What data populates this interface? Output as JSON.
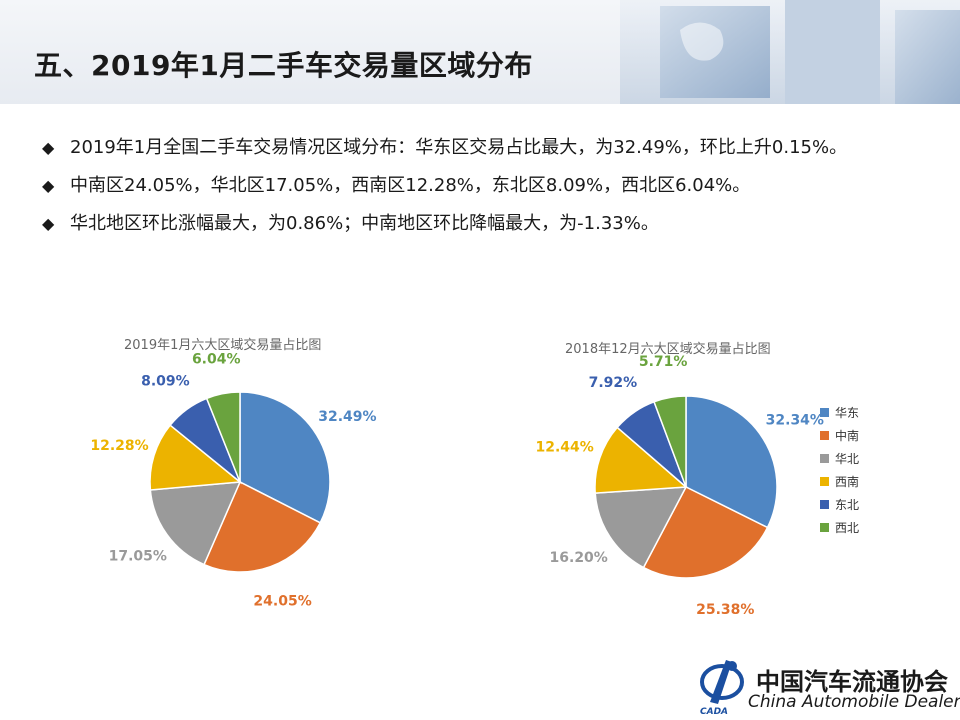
{
  "header": {
    "title": "五、2019年1月二手车交易量区域分布"
  },
  "bullets": [
    "2019年1月全国二手车交易情况区域分布：华东区交易占比最大，为32.49%，环比上升0.15%。",
    "中南区24.05%，华北区17.05%，西南区12.28%，东北区8.09%，西北区6.04%。",
    "华北地区环比涨幅最大，为0.86%；中南地区环比降幅最大，为-1.33%。"
  ],
  "chart_data": [
    {
      "type": "pie",
      "title": "2019年1月六大区域交易量占比图",
      "categories": [
        "华东",
        "中南",
        "华北",
        "西南",
        "东北",
        "西北"
      ],
      "values": [
        32.49,
        24.05,
        17.05,
        12.28,
        8.09,
        6.04
      ],
      "labels": [
        "32.49%",
        "24.05%",
        "17.05%",
        "12.28%",
        "8.09%",
        "6.04%"
      ],
      "colors": [
        "#4f86c3",
        "#e0702c",
        "#9a9a9a",
        "#ecb300",
        "#3a5fae",
        "#6aa33e"
      ],
      "legend": "none"
    },
    {
      "type": "pie",
      "title": "2018年12月六大区域交易量占比图",
      "categories": [
        "华东",
        "中南",
        "华北",
        "西南",
        "东北",
        "西北"
      ],
      "values": [
        32.34,
        25.38,
        16.2,
        12.44,
        7.92,
        5.71
      ],
      "labels": [
        "32.34%",
        "25.38%",
        "16.20%",
        "12.44%",
        "7.92%",
        "5.71%"
      ],
      "colors": [
        "#4f86c3",
        "#e0702c",
        "#9a9a9a",
        "#ecb300",
        "#3a5fae",
        "#6aa33e"
      ],
      "legend": "right"
    }
  ],
  "logo": {
    "name_cn": "中国汽车流通协会",
    "name_en": "China Automobile Dealers",
    "mark_text": "CADA"
  }
}
